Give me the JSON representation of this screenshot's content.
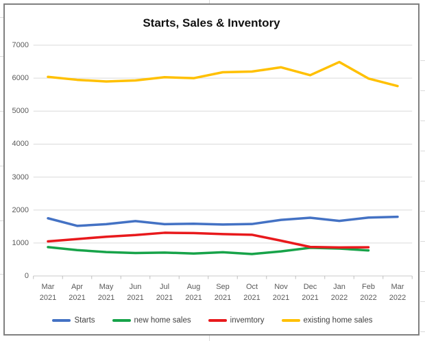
{
  "chart_data": {
    "type": "line",
    "title": "Starts, Sales & Inventory",
    "xlabel": "",
    "ylabel": "",
    "ylim": [
      0,
      7000
    ],
    "y_ticks": [
      0,
      1000,
      2000,
      3000,
      4000,
      5000,
      6000,
      7000
    ],
    "grid": true,
    "legend_position": "bottom",
    "categories": [
      "Mar 2021",
      "Apr 2021",
      "May 2021",
      "Jun 2021",
      "Jul 2021",
      "Aug 2021",
      "Sep 2021",
      "Oct 2021",
      "Nov 2021",
      "Dec 2021",
      "Jan 2022",
      "Feb 2022",
      "Mar 2022"
    ],
    "series": [
      {
        "name": "Starts",
        "color": "#4472C4",
        "values": [
          1750,
          1520,
          1570,
          1665,
          1570,
          1585,
          1560,
          1575,
          1700,
          1765,
          1670,
          1770,
          1795
        ]
      },
      {
        "name": "new home sales",
        "color": "#17A349",
        "values": [
          875,
          785,
          725,
          695,
          710,
          680,
          720,
          665,
          745,
          855,
          830,
          775
        ]
      },
      {
        "name": "invemtory",
        "color": "#E8191C",
        "values": [
          1050,
          1120,
          1190,
          1240,
          1310,
          1300,
          1270,
          1250,
          1070,
          880,
          865,
          870
        ]
      },
      {
        "name": "existing home sales",
        "color": "#FFC000",
        "values": [
          6040,
          5950,
          5900,
          5930,
          6030,
          6000,
          6180,
          6200,
          6330,
          6090,
          6490,
          5990,
          5760
        ]
      }
    ]
  },
  "colors": {
    "gridline": "#d9d9d9",
    "axis_line": "#c9c9c9",
    "tick": "#bfbfbf",
    "axis_text": "#595959",
    "legend_text": "#3f3f3f",
    "title_text": "#111111",
    "frame_border": "#7f7f7f"
  }
}
